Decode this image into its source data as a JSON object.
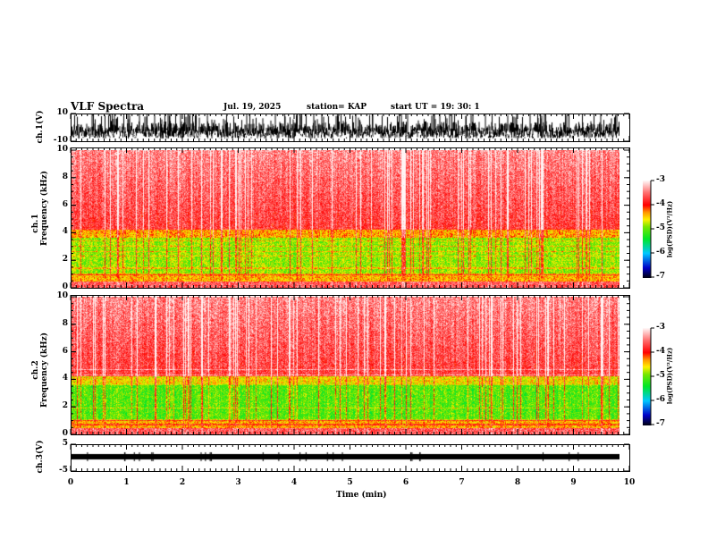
{
  "header": {
    "title": "VLF Spectra",
    "date": "Jul. 19, 2025",
    "station": "station= KAP",
    "start": "start UT =   19: 30: 1"
  },
  "chart_data": {
    "type": "heatmap",
    "title": "VLF Spectra",
    "xlabel": "Time (min)",
    "xlim": [
      0,
      10
    ],
    "xticks": [
      "0",
      "1",
      "2",
      "3",
      "4",
      "5",
      "6",
      "7",
      "8",
      "9",
      "10"
    ],
    "data_end_min": 9.85,
    "panels": [
      {
        "name": "ch1-waveform",
        "ylabel": "ch.1(V)",
        "ylim": [
          -10,
          10
        ],
        "yticks": [
          "10",
          "-10"
        ],
        "type": "line"
      },
      {
        "name": "ch1-spectrogram",
        "ylabel_top": "ch.1",
        "ylabel": "Frequency (kHz)",
        "ylim": [
          0,
          10
        ],
        "yticks": [
          "0",
          "2",
          "4",
          "6",
          "8",
          "10"
        ],
        "type": "heatmap",
        "colorbar": {
          "label": "log(PSD)(V²/Hz)",
          "range": [
            -7,
            -3
          ],
          "ticks": [
            "-3",
            "-4",
            "-5",
            "-6",
            "-7"
          ]
        }
      },
      {
        "name": "ch2-spectrogram",
        "ylabel_top": "ch.2",
        "ylabel": "Frequency (kHz)",
        "ylim": [
          0,
          10
        ],
        "yticks": [
          "0",
          "2",
          "4",
          "6",
          "8",
          "10"
        ],
        "type": "heatmap",
        "colorbar": {
          "label": "log(PSD)(V²/Hz)",
          "range": [
            -7,
            -3
          ],
          "ticks": [
            "-3",
            "-4",
            "-5",
            "-6",
            "-7"
          ]
        }
      },
      {
        "name": "ch3-waveform",
        "ylabel": "ch.3(V)",
        "ylim": [
          -5,
          5
        ],
        "yticks": [
          "5",
          "-5"
        ],
        "type": "line"
      }
    ]
  }
}
